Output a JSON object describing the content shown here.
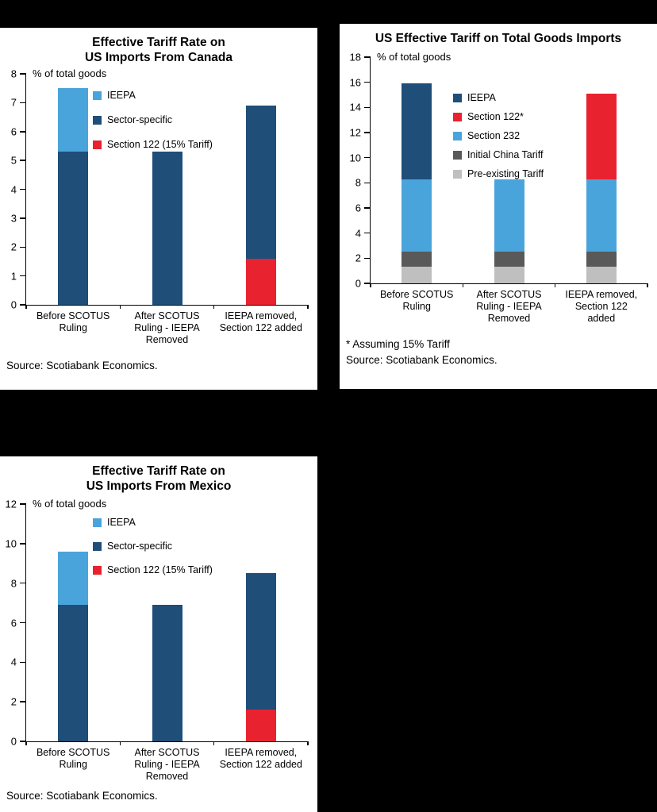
{
  "background_color": "#000000",
  "panel_color": "#FFFFFF",
  "colors": {
    "ieepa_light_blue": "#4AA4DC",
    "sector_dark_blue": "#1F4E79",
    "section122_red": "#E8222F",
    "initial_china_gray": "#595959",
    "preexisting_gray": "#BFBFBF"
  },
  "chart_data": [
    {
      "id": "canada-effective-tariff",
      "type": "bar",
      "stacked": true,
      "grid": false,
      "legend_position": "upper-left-inside",
      "title": "Effective Tariff Rate on\nUS Imports From Canada",
      "ylabel": "% of total goods",
      "ylim": [
        0,
        8
      ],
      "ytick_step": 1,
      "categories": [
        "Before SCOTUS\nRuling",
        "After SCOTUS\nRuling - IEEPA\nRemoved",
        "IEEPA removed,\nSection 122 added"
      ],
      "series": [
        {
          "name": "Section 122 (15% Tariff)",
          "color": "#E8222F",
          "values": [
            0,
            0,
            1.6
          ]
        },
        {
          "name": "Sector-specific",
          "color": "#1F4E79",
          "values": [
            5.3,
            5.3,
            5.3
          ]
        },
        {
          "name": "IEEPA",
          "color": "#4AA4DC",
          "values": [
            2.2,
            0,
            0
          ]
        }
      ],
      "legend": [
        {
          "label": "IEEPA",
          "color": "#4AA4DC"
        },
        {
          "label": "Sector-specific",
          "color": "#1F4E79"
        },
        {
          "label": "Section 122 (15% Tariff)",
          "color": "#E8222F"
        }
      ],
      "source": "Source: Scotiabank Economics."
    },
    {
      "id": "us-effective-tariff-total-goods",
      "type": "bar",
      "stacked": true,
      "grid": false,
      "legend_position": "upper-center-inside",
      "title": "US Effective Tariff on Total Goods Imports",
      "ylabel": "% of total goods",
      "ylim": [
        0,
        18
      ],
      "ytick_step": 2,
      "categories": [
        "Before SCOTUS\nRuling",
        "After SCOTUS\nRuling - IEEPA\nRemoved",
        "IEEPA removed,\nSection 122\nadded"
      ],
      "series": [
        {
          "name": "Pre-existing Tariff",
          "color": "#BFBFBF",
          "values": [
            1.3,
            1.3,
            1.3
          ]
        },
        {
          "name": "Initial China Tariff",
          "color": "#595959",
          "values": [
            1.2,
            1.2,
            1.2
          ]
        },
        {
          "name": "Section 232",
          "color": "#4AA4DC",
          "values": [
            5.8,
            5.8,
            5.8
          ]
        },
        {
          "name": "IEEPA",
          "color": "#1F4E79",
          "values": [
            7.6,
            0,
            0
          ]
        },
        {
          "name": "Section 122*",
          "color": "#E8222F",
          "values": [
            0,
            0,
            6.8
          ]
        }
      ],
      "legend": [
        {
          "label": "IEEPA",
          "color": "#1F4E79"
        },
        {
          "label": "Section 122*",
          "color": "#E8222F"
        },
        {
          "label": "Section 232",
          "color": "#4AA4DC"
        },
        {
          "label": "Initial China Tariff",
          "color": "#595959"
        },
        {
          "label": "Pre-existing Tariff",
          "color": "#BFBFBF"
        }
      ],
      "footnote": "* Assuming 15% Tariff",
      "source": "Source: Scotiabank Economics."
    },
    {
      "id": "mexico-effective-tariff",
      "type": "bar",
      "stacked": true,
      "grid": false,
      "legend_position": "upper-left-inside",
      "title": "Effective Tariff Rate on\nUS Imports From Mexico",
      "ylabel": "% of total goods",
      "ylim": [
        0,
        12
      ],
      "ytick_step": 2,
      "categories": [
        "Before SCOTUS\nRuling",
        "After SCOTUS\nRuling - IEEPA\nRemoved",
        "IEEPA removed,\nSection 122 added"
      ],
      "series": [
        {
          "name": "Section 122 (15% Tariff)",
          "color": "#E8222F",
          "values": [
            0,
            0,
            1.6
          ]
        },
        {
          "name": "Sector-specific",
          "color": "#1F4E79",
          "values": [
            6.9,
            6.9,
            6.9
          ]
        },
        {
          "name": "IEEPA",
          "color": "#4AA4DC",
          "values": [
            2.7,
            0,
            0
          ]
        }
      ],
      "legend": [
        {
          "label": "IEEPA",
          "color": "#4AA4DC"
        },
        {
          "label": "Sector-specific",
          "color": "#1F4E79"
        },
        {
          "label": "Section 122 (15% Tariff)",
          "color": "#E8222F"
        }
      ],
      "source": "Source: Scotiabank Economics."
    }
  ]
}
